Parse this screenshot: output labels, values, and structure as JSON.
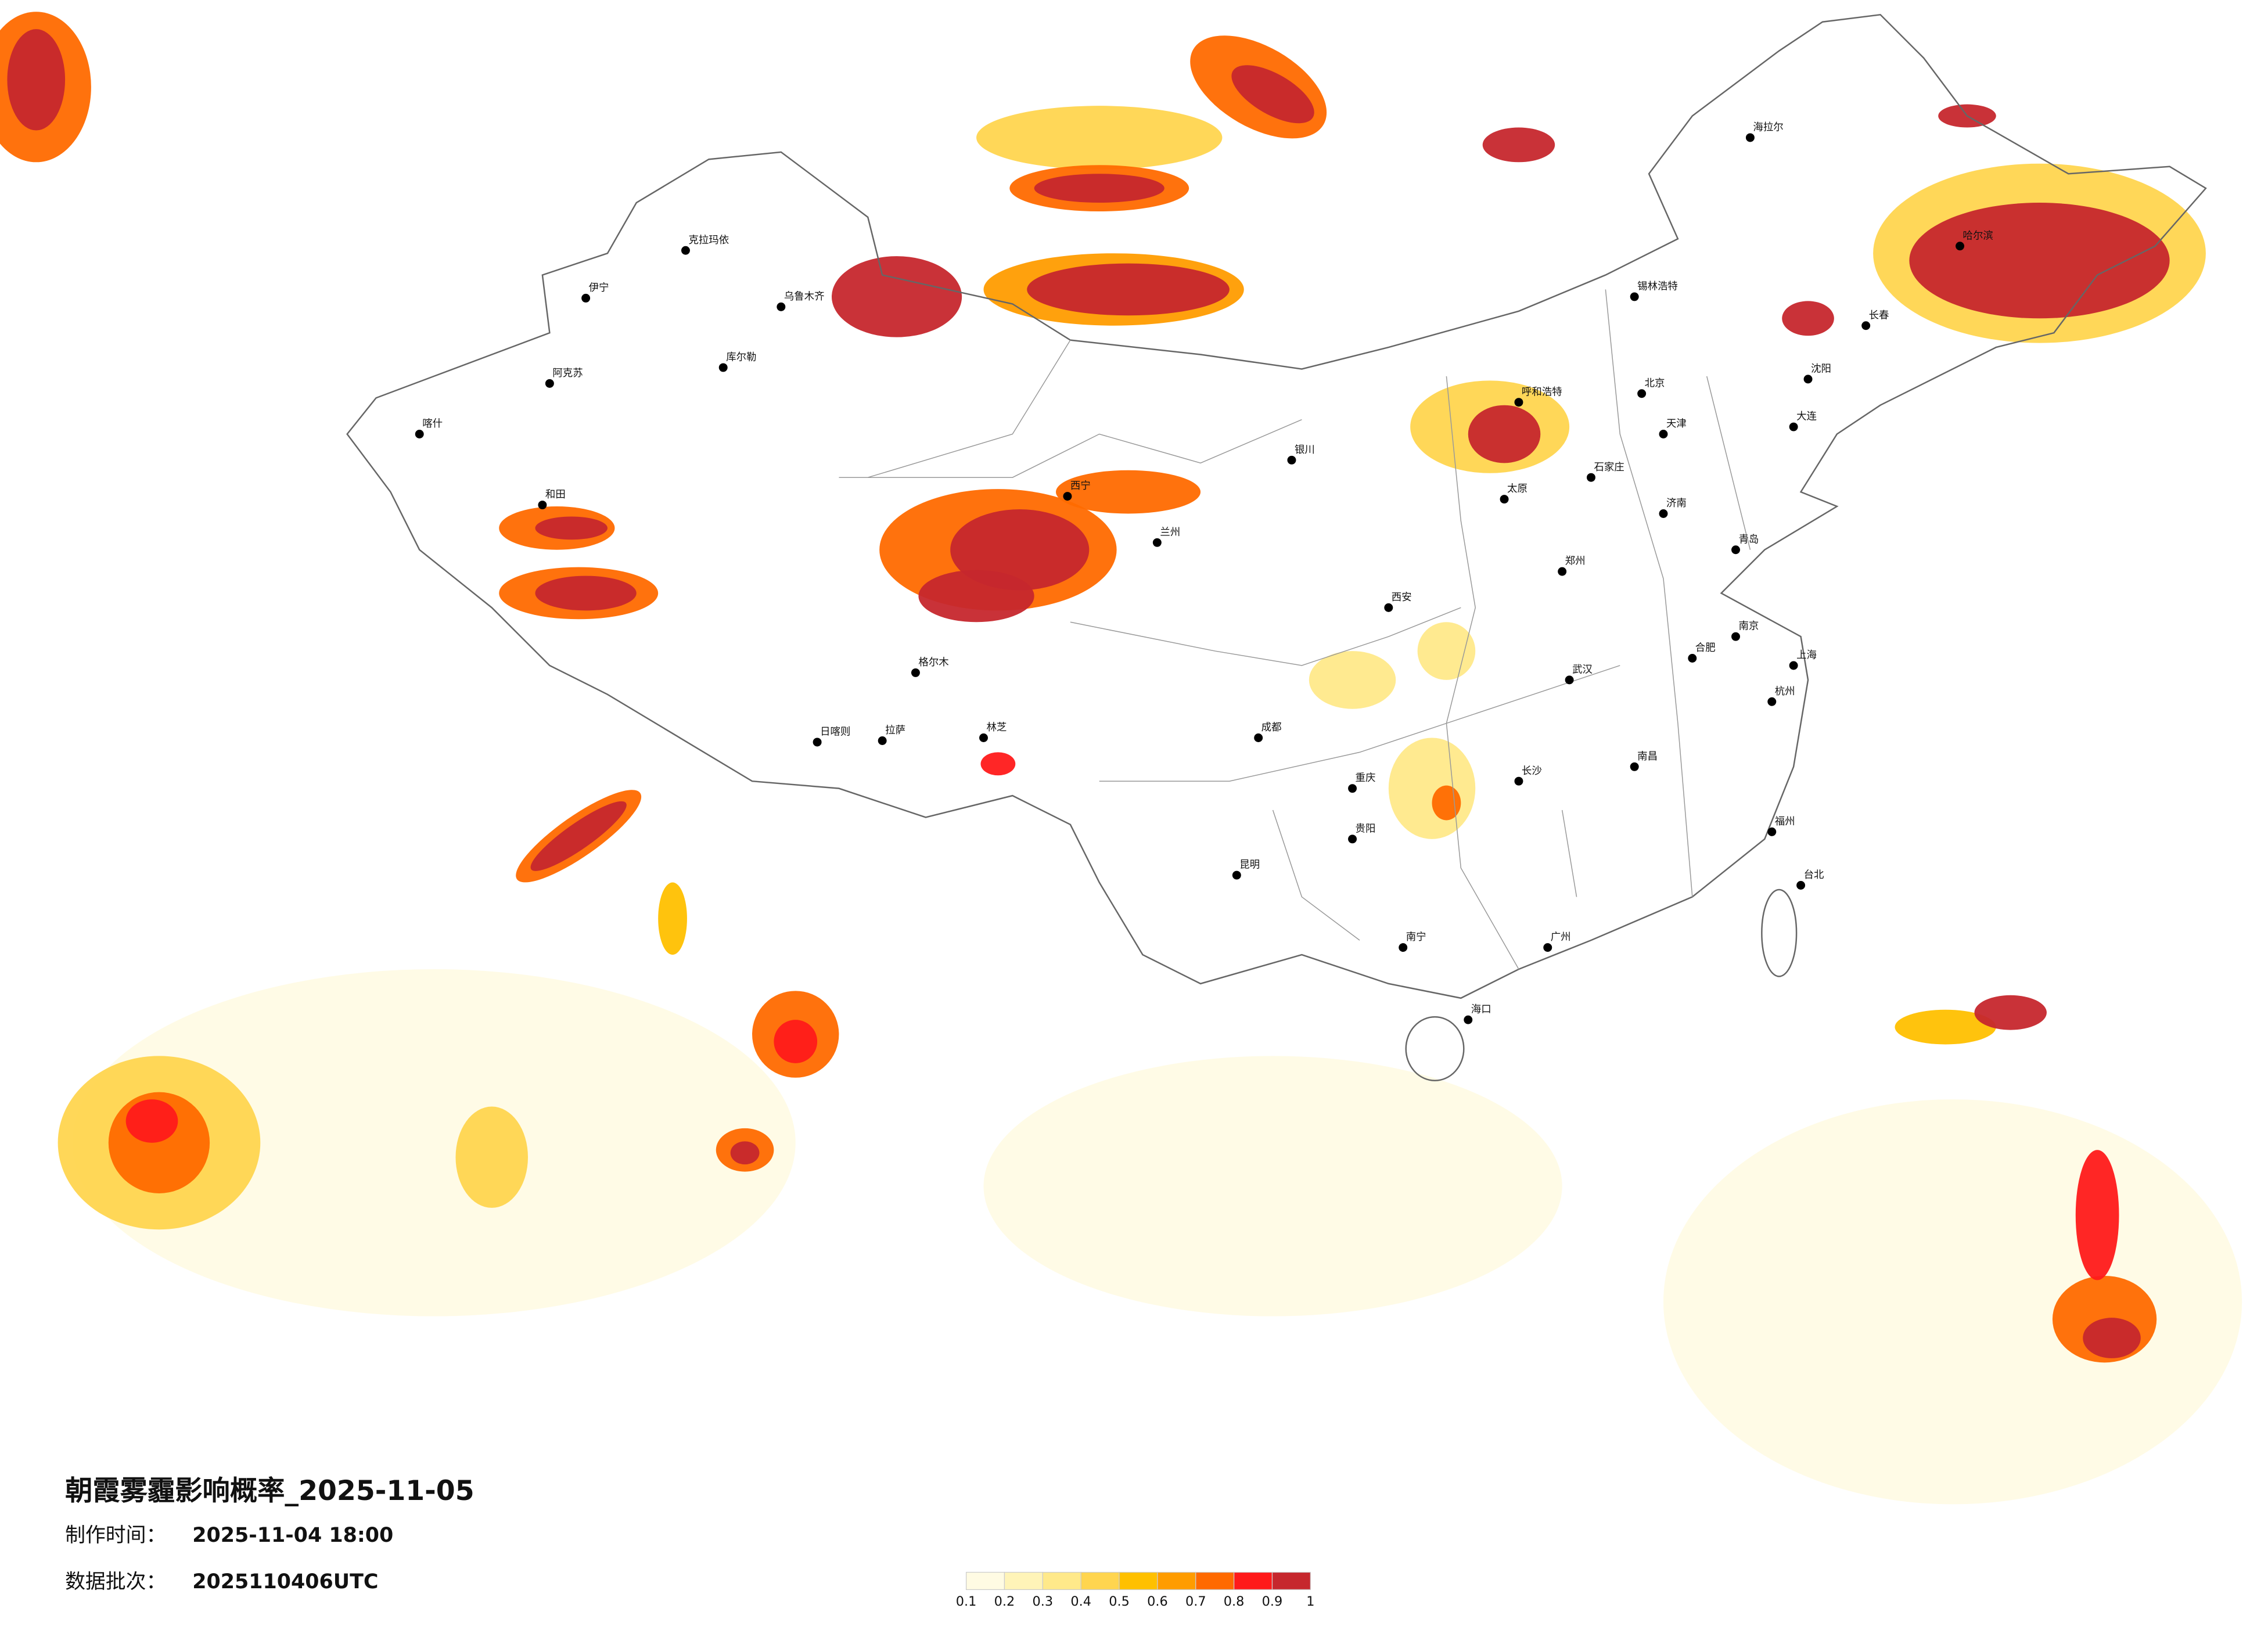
{
  "title": "朝霞雾霾影响概率_2025-11-05",
  "info": [
    {
      "label": "制作时间：",
      "value": "2025-11-04 18:00"
    },
    {
      "label": "数据批次：",
      "value": "2025110406UTC"
    }
  ],
  "legend": {
    "ticks": [
      0.1,
      0.2,
      0.3,
      0.4,
      0.5,
      0.6,
      0.7,
      0.8,
      0.9,
      1
    ],
    "colors": [
      "#fffbe3",
      "#fff4b8",
      "#ffe98a",
      "#ffd54f",
      "#ffc000",
      "#ff9c00",
      "#ff6a00",
      "#ff1a1a",
      "#c6272d"
    ]
  },
  "cities": [
    "乌鲁木齐",
    "克拉玛依",
    "伊宁",
    "库尔勒",
    "阿克苏",
    "喀什",
    "和田",
    "拉萨",
    "日喀则",
    "林芝",
    "格尔木",
    "西宁",
    "兰州",
    "银川",
    "呼和浩特",
    "北京",
    "天津",
    "石家庄",
    "太原",
    "西安",
    "郑州",
    "济南",
    "哈尔滨",
    "长春",
    "沈阳",
    "海拉尔",
    "锡林浩特",
    "成都",
    "重庆",
    "贵阳",
    "昆明",
    "南宁",
    "广州",
    "海口",
    "长沙",
    "武汉",
    "南昌",
    "合肥",
    "南京",
    "上海",
    "杭州",
    "福州",
    "台北",
    "青岛",
    "大连"
  ]
}
